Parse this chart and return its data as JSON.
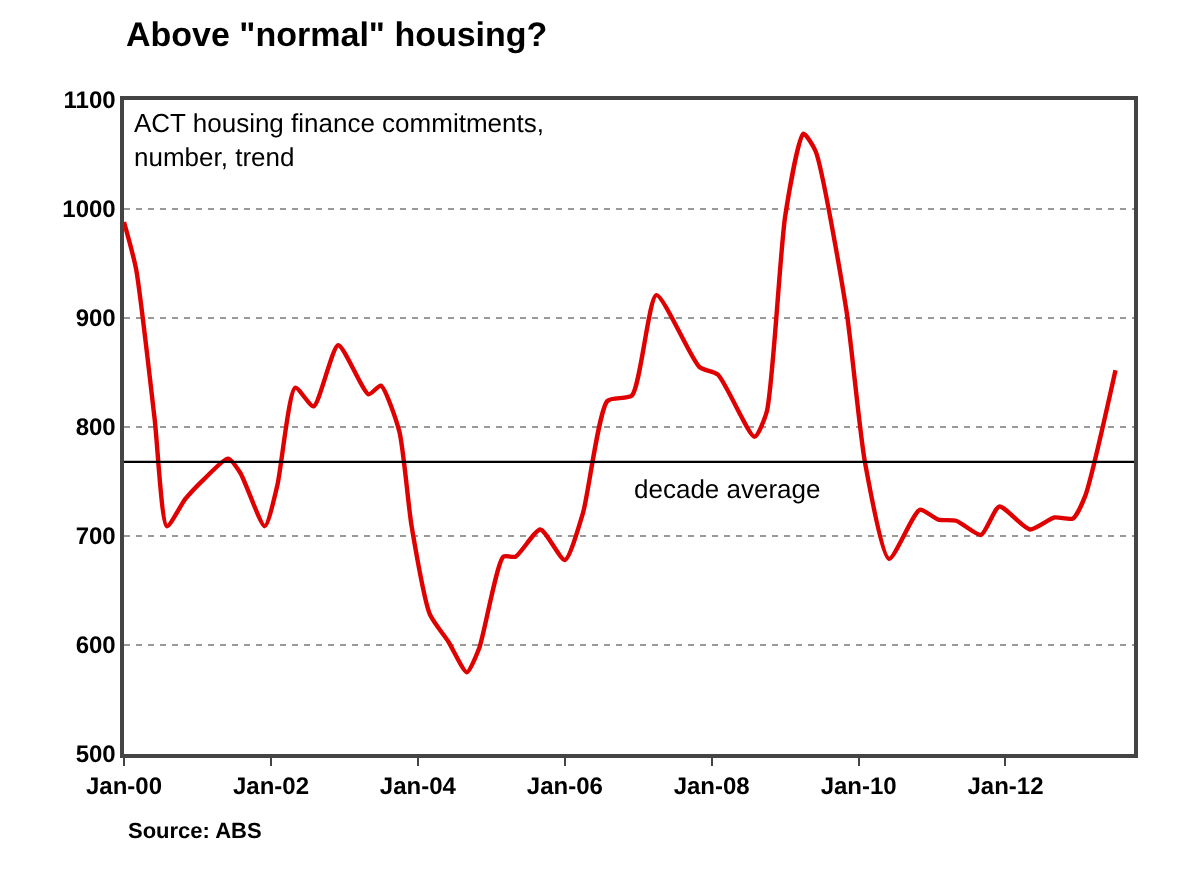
{
  "chart_data": {
    "type": "line",
    "title": "Above \"normal\" housing?",
    "annotations": [
      "ACT housing finance commitments, number, trend",
      "Source: ABS"
    ],
    "x": [
      "2000-01",
      "2000-03",
      "2000-06",
      "2000-08",
      "2000-11",
      "2001-02",
      "2001-06",
      "2001-08",
      "2001-12",
      "2002-02",
      "2002-05",
      "2002-08",
      "2002-12",
      "2003-05",
      "2003-07",
      "2003-10",
      "2003-12",
      "2004-03",
      "2004-06",
      "2004-09",
      "2004-11",
      "2005-03",
      "2005-05",
      "2005-09",
      "2006-01",
      "2006-04",
      "2006-08",
      "2006-12",
      "2007-04",
      "2007-11",
      "2008-02",
      "2008-08",
      "2008-10",
      "2009-01",
      "2009-04",
      "2009-06",
      "2009-11",
      "2010-02",
      "2010-06",
      "2010-11",
      "2011-02",
      "2011-05",
      "2011-09",
      "2011-12",
      "2012-05",
      "2012-09",
      "2012-12",
      "2013-02",
      "2013-07"
    ],
    "series": [
      {
        "color": "#e00000",
        "values": [
          988,
          945,
          808,
          709,
          734,
          752,
          771,
          758,
          709,
          746,
          836,
          819,
          875,
          830,
          838,
          796,
          709,
          628,
          603,
          575,
          597,
          681,
          681,
          706,
          678,
          721,
          824,
          829,
          921,
          855,
          848,
          791,
          814,
          994,
          1069,
          1053,
          907,
          768,
          679,
          724,
          715,
          714,
          701,
          727,
          706,
          717,
          716,
          737,
          852
        ]
      }
    ],
    "xlim": [
      "2000-01",
      "2013-10"
    ],
    "xticks": [
      {
        "value": "2000-01",
        "label": "Jan-00"
      },
      {
        "value": "2002-01",
        "label": "Jan-02"
      },
      {
        "value": "2004-01",
        "label": "Jan-04"
      },
      {
        "value": "2006-01",
        "label": "Jan-06"
      },
      {
        "value": "2008-01",
        "label": "Jan-08"
      },
      {
        "value": "2010-01",
        "label": "Jan-10"
      },
      {
        "value": "2012-01",
        "label": "Jan-12"
      }
    ],
    "ylim": [
      500,
      1100
    ],
    "yticks": [
      500,
      600,
      700,
      800,
      900,
      1000,
      1100
    ],
    "grid": "y",
    "legend": false,
    "marker": "none",
    "line_style": "solid",
    "ref_lines": [
      {
        "axis": "y",
        "value": 768,
        "label": "decade average",
        "color": "#000000"
      }
    ]
  }
}
